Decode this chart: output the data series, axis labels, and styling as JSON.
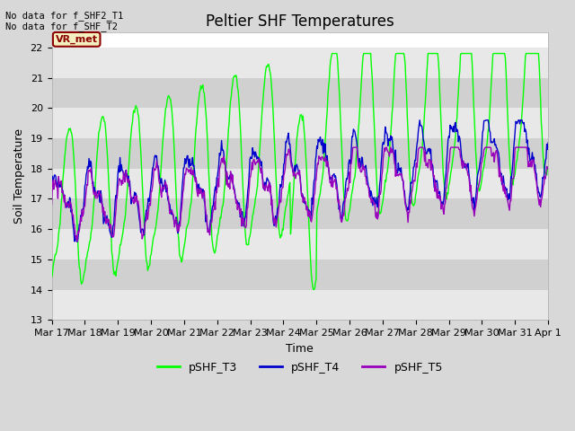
{
  "title": "Peltier SHF Temperatures",
  "xlabel": "Time",
  "ylabel": "Soil Temperature",
  "ylim": [
    13.0,
    22.5
  ],
  "yticks": [
    13.0,
    14.0,
    15.0,
    16.0,
    17.0,
    18.0,
    19.0,
    20.0,
    21.0,
    22.0
  ],
  "xlim_start": 0,
  "xlim_end": 15,
  "xtick_labels": [
    "Mar 17",
    "Mar 18",
    "Mar 19",
    "Mar 20",
    "Mar 21",
    "Mar 22",
    "Mar 23",
    "Mar 24",
    "Mar 25",
    "Mar 26",
    "Mar 27",
    "Mar 28",
    "Mar 29",
    "Mar 30",
    "Mar 31",
    "Apr 1"
  ],
  "color_T3": "#00ff00",
  "color_T4": "#0000cd",
  "color_T5": "#9900bb",
  "legend_labels": [
    "pSHF_T3",
    "pSHF_T4",
    "pSHF_T5"
  ],
  "no_data_text1": "No data for f_SHF2_T1",
  "no_data_text2": "No data for f_SHF_T2",
  "vr_met_label": "VR_met",
  "bg_color": "#d8d8d8",
  "plot_bg_color": "#ffffff",
  "band_color1": "#e8e8e8",
  "band_color2": "#d0d0d0",
  "title_fontsize": 12,
  "label_fontsize": 9,
  "tick_fontsize": 8,
  "linewidth": 1.0
}
